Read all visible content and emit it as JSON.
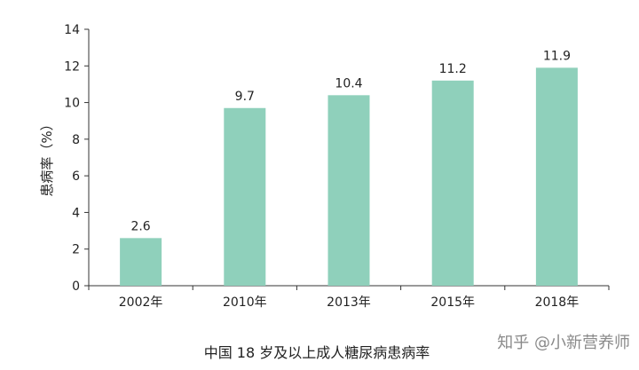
{
  "chart_data": {
    "type": "bar",
    "title": "中国 18 岁及以上成人糖尿病患病率",
    "xlabel": "",
    "ylabel": "患病率（%）",
    "categories": [
      "2002年",
      "2010年",
      "2013年",
      "2015年",
      "2018年"
    ],
    "values": [
      2.6,
      9.7,
      10.4,
      11.2,
      11.9
    ],
    "data_labels": [
      "2.6",
      "9.7",
      "10.4",
      "11.2",
      "11.9"
    ],
    "ylim": [
      0,
      14
    ],
    "yticks": [
      "0",
      "2",
      "4",
      "6",
      "8",
      "10",
      "12",
      "14"
    ],
    "bar_color": "#8fd0bb",
    "grid": false,
    "legend": "none"
  },
  "watermark": "知乎 @小新营养师"
}
